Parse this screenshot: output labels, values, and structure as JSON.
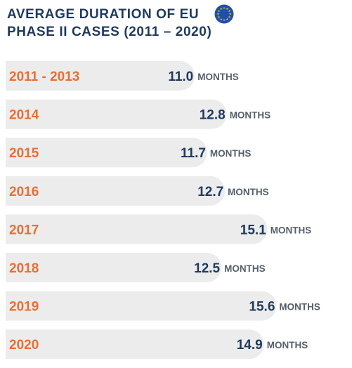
{
  "title_line1": "AVERAGE DURATION OF EU",
  "title_line2": "PHASE II CASES (2011 – 2020)",
  "icons": {
    "flag": "eu-flag-icon"
  },
  "colors": {
    "bar": "#ececec",
    "category_text": "#e96e36",
    "value_text": "#1f3a5c",
    "unit_text": "#55606b",
    "title_text": "#1f3a5c",
    "flag_blue": "#1f4fae",
    "flag_stars": "#ffd200"
  },
  "chart_data": {
    "type": "bar",
    "orientation": "horizontal",
    "title": "AVERAGE DURATION OF EU PHASE II CASES (2011 – 2020)",
    "categories": [
      "2011 - 2013",
      "2014",
      "2015",
      "2016",
      "2017",
      "2018",
      "2019",
      "2020"
    ],
    "values": [
      11.0,
      12.8,
      11.7,
      12.7,
      15.1,
      12.5,
      15.6,
      14.9
    ],
    "value_labels": [
      "11.0",
      "12.8",
      "11.7",
      "12.7",
      "15.1",
      "12.5",
      "15.6",
      "14.9"
    ],
    "unit": "MONTHS",
    "grid": false,
    "legend": "none"
  }
}
